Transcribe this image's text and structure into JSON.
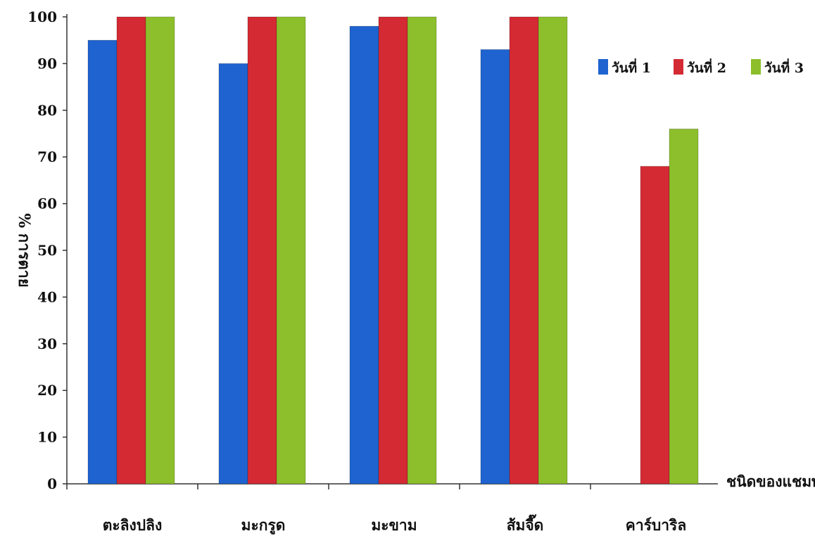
{
  "chart_data": {
    "type": "bar",
    "title": "",
    "xlabel": "ชนิดของแชมพู",
    "ylabel": "% การตาย",
    "ylim": [
      0,
      100
    ],
    "yticks": [
      0,
      10,
      20,
      30,
      40,
      50,
      60,
      70,
      80,
      90,
      100
    ],
    "grid": false,
    "legend_position": "top-right",
    "categories": [
      "ตะลิงปลิง",
      "มะกรูด",
      "มะขาม",
      "ส้มจี๊ด",
      "คาร์บาริล"
    ],
    "series": [
      {
        "name": "วันที่ 1",
        "color": "#1e63cf",
        "values": [
          95,
          90,
          98,
          93,
          0
        ]
      },
      {
        "name": "วันที่ 2",
        "color": "#d42a34",
        "values": [
          100,
          100,
          100,
          100,
          68
        ]
      },
      {
        "name": "วันที่ 3",
        "color": "#8cbf2b",
        "values": [
          100,
          100,
          100,
          100,
          76
        ]
      }
    ]
  }
}
